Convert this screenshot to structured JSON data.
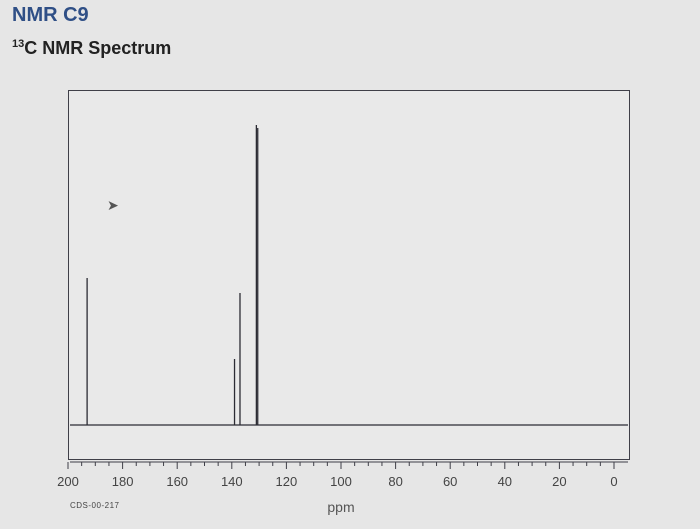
{
  "page": {
    "title": "NMR C9",
    "subtitle_superscript": "13",
    "subtitle": "C NMR Spectrum"
  },
  "chart_data": {
    "type": "line",
    "title": "",
    "xlabel": "ppm",
    "ylabel": "",
    "xlim": [
      200,
      0
    ],
    "ylim": [
      0,
      1
    ],
    "x_ticks": [
      200,
      180,
      160,
      140,
      120,
      100,
      80,
      60,
      40,
      20,
      0
    ],
    "x_tick_labels": [
      "200",
      "180",
      "160",
      "140",
      "120",
      "100",
      "80",
      "60",
      "40",
      "20",
      "0"
    ],
    "peaks": [
      {
        "x": 193,
        "y": 0.49
      },
      {
        "x": 139,
        "y": 0.22
      },
      {
        "x": 137,
        "y": 0.44
      },
      {
        "x": 131,
        "y": 1.0
      },
      {
        "x": 130.5,
        "y": 0.99
      }
    ],
    "spectrum_code": "CDS-00-217",
    "grid": false,
    "colors": {
      "trace": "#2c2c34",
      "title": "#2f4f86"
    }
  }
}
